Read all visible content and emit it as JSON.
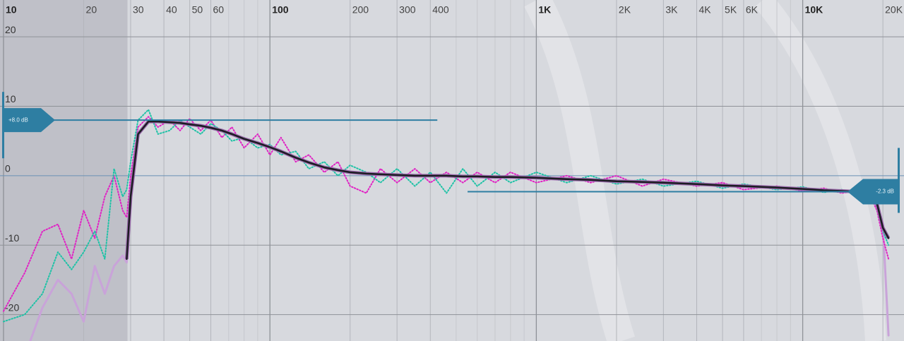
{
  "chart_data": {
    "type": "line",
    "xscale": "log",
    "xlim": [
      9.7,
      24000
    ],
    "ylim": [
      -23.8,
      25.3
    ],
    "xticks": [
      10,
      20,
      30,
      40,
      50,
      60,
      100,
      200,
      300,
      400,
      {
        "value": 1000,
        "label": "1K"
      },
      {
        "value": 2000,
        "label": "2K"
      },
      {
        "value": 3000,
        "label": "3K"
      },
      {
        "value": 4000,
        "label": "4K"
      },
      {
        "value": 5000,
        "label": "5K"
      },
      {
        "value": 6000,
        "label": "6K"
      },
      {
        "value": 10000,
        "label": "10K"
      },
      {
        "value": 20000,
        "label": "20K"
      }
    ],
    "minor_xticks": [
      70,
      80,
      90,
      500,
      600,
      700,
      800,
      900,
      7000,
      8000,
      9000
    ],
    "yticks": [
      20,
      10,
      0,
      -10,
      -20
    ],
    "grid": true,
    "shaded_range": [
      9.7,
      29.2
    ],
    "x": [
      10,
      12,
      14,
      16,
      18,
      20,
      22,
      24,
      26,
      28,
      29,
      30,
      32,
      35,
      38,
      42,
      46,
      50,
      55,
      60,
      66,
      72,
      80,
      90,
      100,
      110,
      125,
      140,
      160,
      180,
      200,
      230,
      260,
      300,
      350,
      400,
      460,
      530,
      600,
      700,
      800,
      1000,
      1300,
      1600,
      2000,
      2500,
      3000,
      4000,
      5000,
      6000,
      8000,
      10000,
      12000,
      14000,
      16000,
      18000,
      19000,
      20000,
      21000
    ],
    "series": [
      {
        "color": "#c9a3d9",
        "width": 3,
        "dotted": false,
        "values": [
          null,
          -26,
          -19,
          -15,
          -17,
          -21,
          -13,
          -17,
          -13,
          -11.5,
          -12.5,
          -3,
          6,
          7.8,
          7.8,
          7.7,
          7.6,
          7.4,
          7.2,
          6.9,
          6.5,
          6,
          5.3,
          4.7,
          4.1,
          3.5,
          2.6,
          1.9,
          1.2,
          0.8,
          0.5,
          0.3,
          0.2,
          0.1,
          0,
          0,
          0,
          -0.1,
          -0.1,
          -0.2,
          -0.2,
          -0.3,
          -0.5,
          -0.6,
          -0.8,
          -0.9,
          -1,
          -1.2,
          -1.4,
          -1.5,
          -1.7,
          -1.9,
          -2.1,
          -2.2,
          -2.3,
          -2.6,
          -4,
          -7,
          -23
        ]
      },
      {
        "color": "#e022c4",
        "width": 2,
        "dotted": true,
        "values": [
          -19.5,
          -14,
          -8,
          -7,
          -12,
          -5,
          -9,
          -3,
          0,
          -5,
          -6,
          0,
          7,
          8.5,
          7,
          8,
          6.5,
          8.2,
          6.5,
          8,
          5.5,
          7,
          4,
          6,
          3,
          5.5,
          2,
          3,
          0.5,
          2,
          -1.5,
          -2.5,
          1,
          -1,
          1,
          -1,
          0.5,
          -1,
          0.5,
          -1,
          0.5,
          -1,
          0,
          -1,
          0,
          -1.5,
          -0.5,
          -1.5,
          -1,
          -2,
          -1.5,
          -2.2,
          -1.8,
          -2.5,
          -2.2,
          -3,
          -5,
          -9,
          -12
        ]
      },
      {
        "color": "#1fc2a6",
        "width": 2,
        "dotted": true,
        "values": [
          -21,
          -20,
          -17,
          -11,
          -13.5,
          -11,
          -8,
          -12,
          1,
          -3,
          -2,
          2,
          8,
          9.5,
          6,
          6.5,
          8,
          7,
          6,
          7.5,
          6.5,
          5,
          5.5,
          4,
          4.5,
          3,
          3.5,
          1,
          2,
          0,
          1.5,
          0.5,
          -1,
          1,
          -1.5,
          0.5,
          -2.5,
          1,
          -1.5,
          0.5,
          -1,
          0.5,
          -1,
          0,
          -1.2,
          -0.5,
          -1.5,
          -0.8,
          -1.8,
          -1.2,
          -2,
          -1.6,
          -2.4,
          -2,
          -2.6,
          -2.5,
          -4.5,
          -8,
          -10
        ]
      },
      {
        "color": "#1c1c22",
        "width": 2.5,
        "dotted": false,
        "outline": "#9a6aac",
        "values": [
          null,
          null,
          null,
          null,
          null,
          null,
          null,
          null,
          null,
          null,
          -12,
          -3,
          6,
          7.8,
          7.8,
          7.7,
          7.6,
          7.4,
          7.2,
          6.9,
          6.5,
          6,
          5.3,
          4.7,
          4.1,
          3.5,
          2.6,
          1.9,
          1.2,
          0.8,
          0.5,
          0.3,
          0.2,
          0.1,
          0,
          0,
          0,
          -0.1,
          -0.1,
          -0.2,
          -0.2,
          -0.3,
          -0.5,
          -0.6,
          -0.8,
          -0.9,
          -1,
          -1.2,
          -1.4,
          -1.5,
          -1.7,
          -1.9,
          -2.1,
          -2.2,
          -2.3,
          -2.6,
          -4,
          -7.5,
          -9
        ]
      }
    ],
    "annotations": [
      {
        "label": "+8.0 dB",
        "value": 8.0,
        "x_end": 425,
        "side": "left"
      },
      {
        "label": "-2.3 dB",
        "value": -2.3,
        "x_start": 552,
        "side": "right"
      }
    ],
    "handle_color": "#2e7ea2"
  }
}
